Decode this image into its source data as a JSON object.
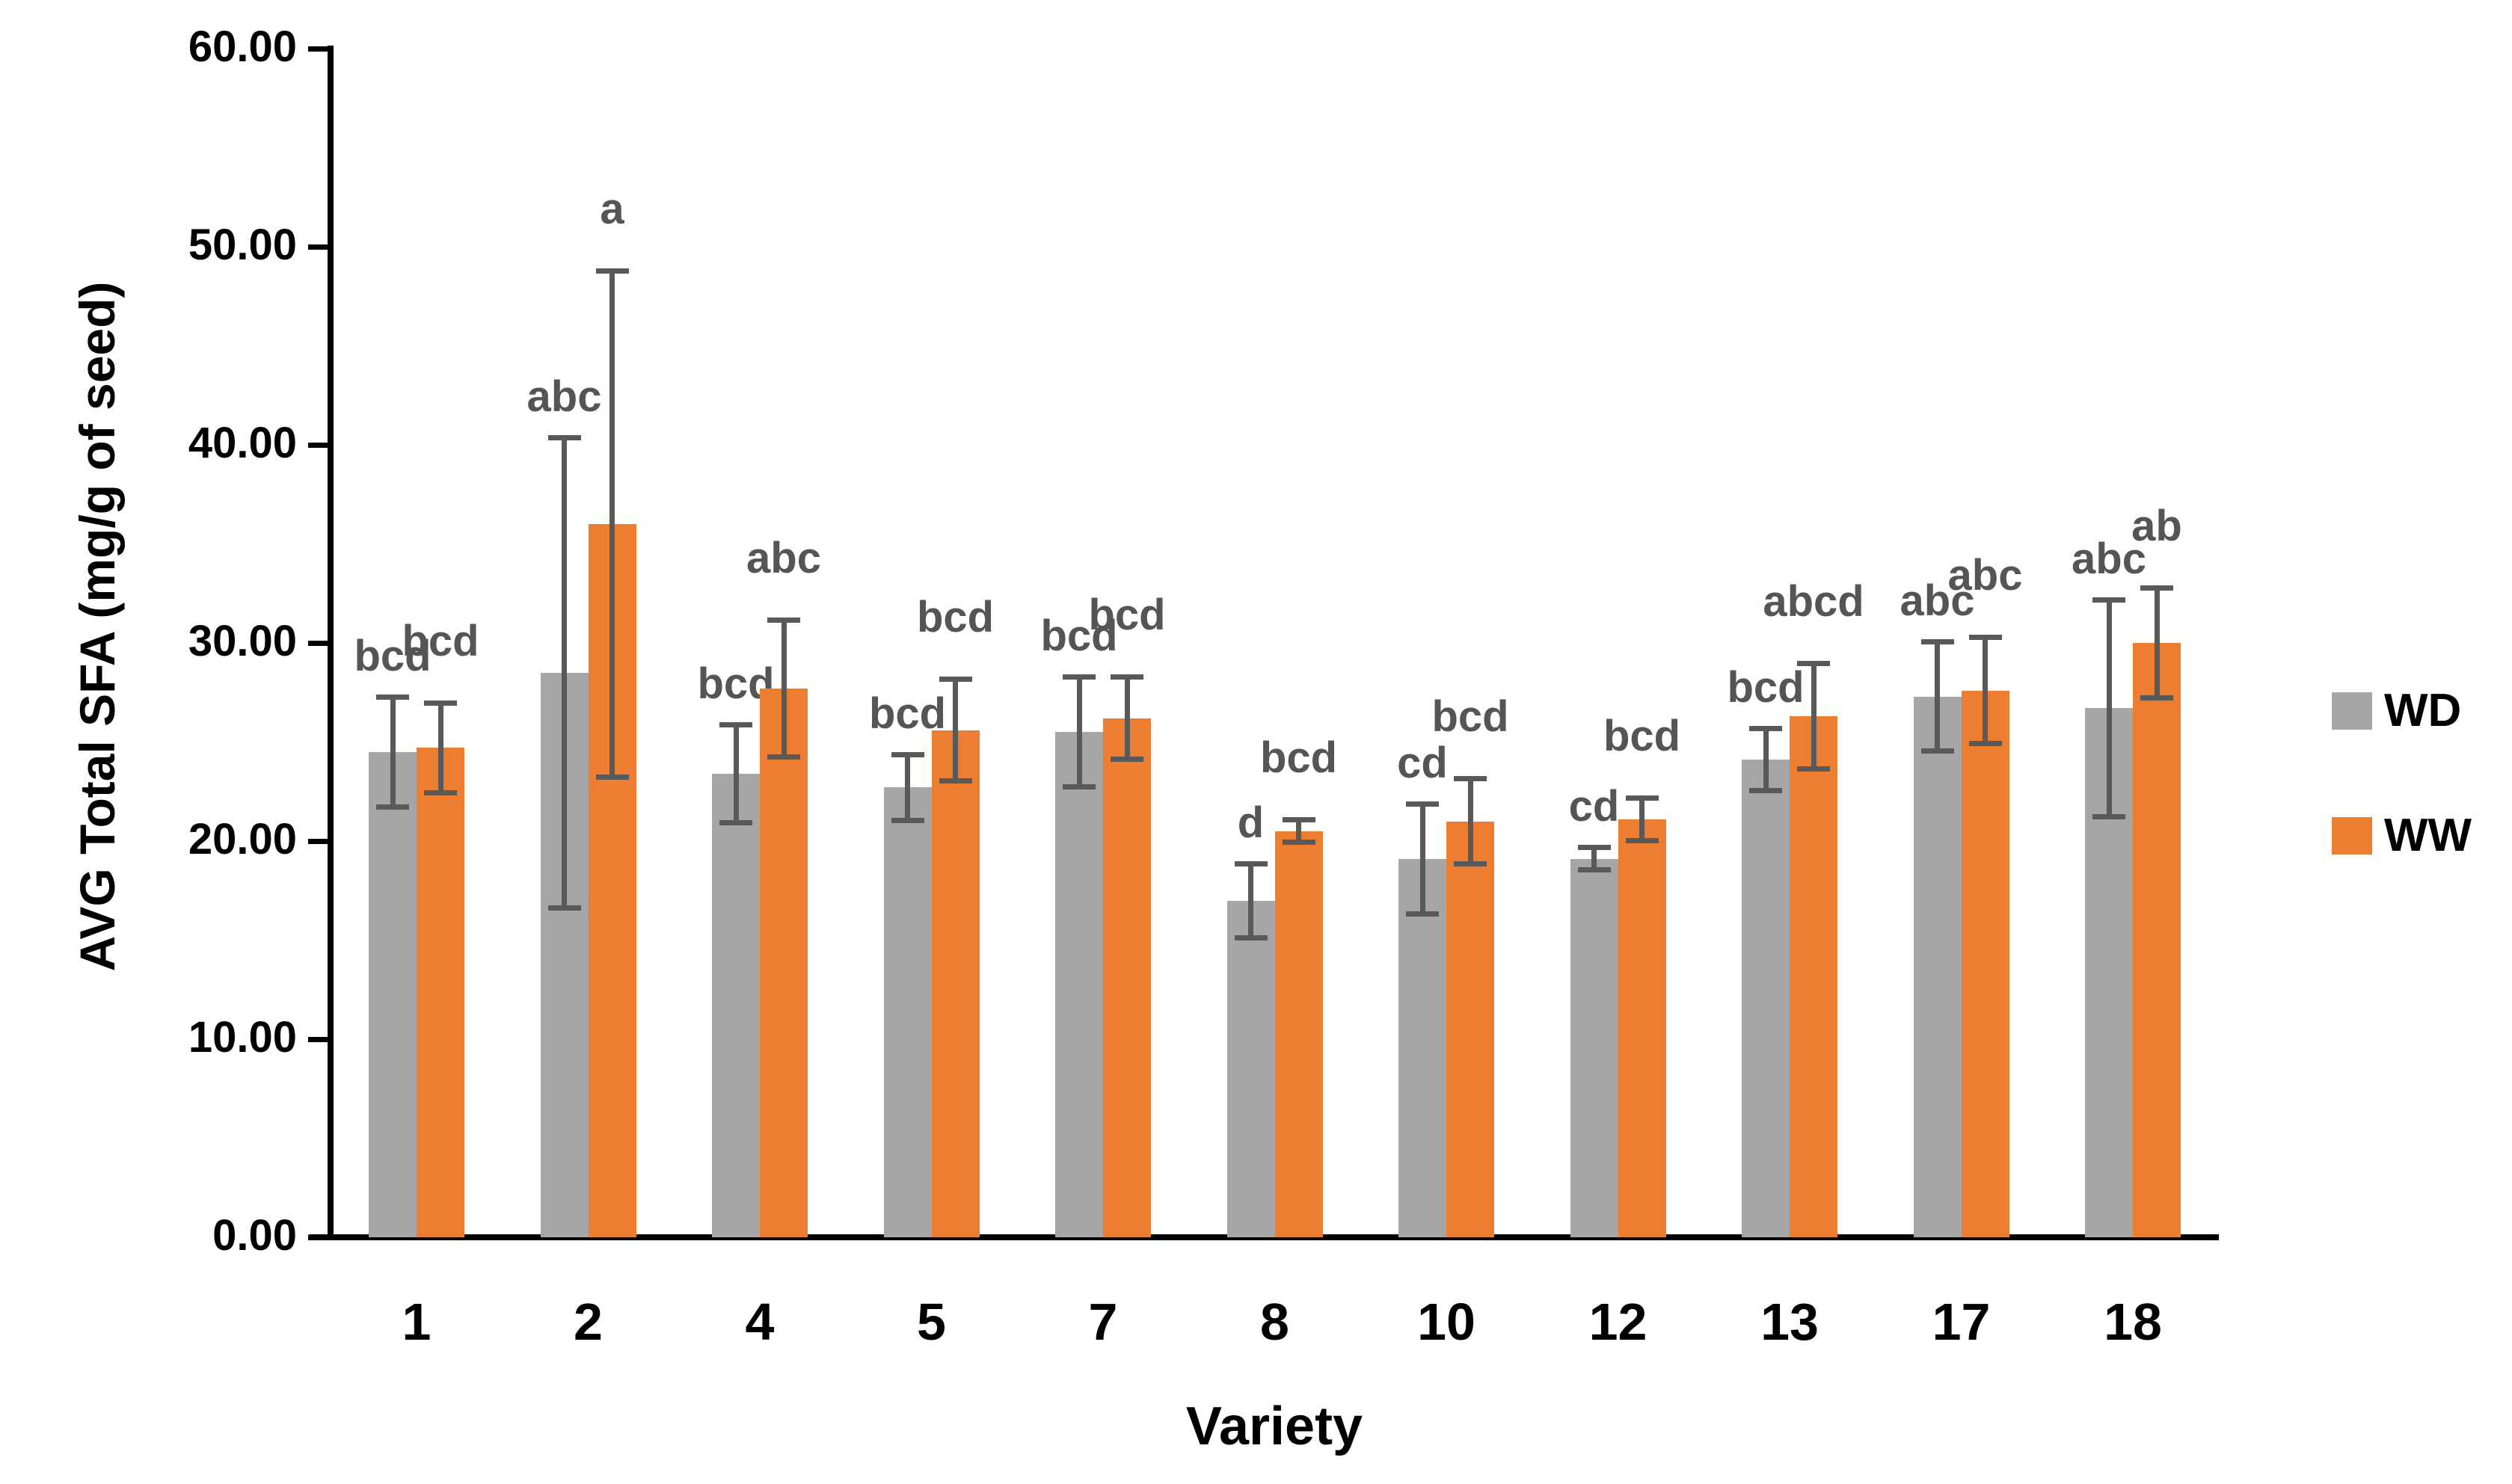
{
  "chart_data": {
    "type": "bar",
    "title": "",
    "xlabel": "Variety",
    "ylabel": "AVG Total SFA (mg/g of seed)",
    "categories": [
      "1",
      "2",
      "4",
      "5",
      "7",
      "8",
      "10",
      "12",
      "13",
      "17",
      "18"
    ],
    "series": [
      {
        "name": "WD",
        "color": "#A6A6A6",
        "values": [
          24.5,
          28.5,
          23.4,
          22.7,
          25.5,
          17.0,
          19.1,
          19.1,
          24.1,
          27.3,
          26.7
        ],
        "errors": [
          2.9,
          12.0,
          2.6,
          1.8,
          2.9,
          2.0,
          2.9,
          0.7,
          1.7,
          2.9,
          5.6
        ],
        "letters": [
          "bcd",
          "abc",
          "bcd",
          "bcd",
          "bcd",
          "d",
          "cd",
          "cd",
          "bcd",
          "abc",
          "abc"
        ]
      },
      {
        "name": "WW",
        "color": "#ED7D31",
        "values": [
          24.7,
          36.0,
          27.7,
          25.6,
          26.2,
          20.5,
          21.0,
          21.1,
          26.3,
          27.6,
          30.0
        ],
        "errors": [
          2.4,
          12.9,
          3.6,
          2.7,
          2.2,
          0.7,
          2.3,
          1.2,
          2.8,
          2.8,
          2.9
        ],
        "letters": [
          "bcd",
          "a",
          "abc",
          "bcd",
          "bcd",
          "bcd",
          "bcd",
          "bcd",
          "abcd",
          "abc",
          "ab"
        ]
      }
    ],
    "ylim": [
      0,
      60
    ],
    "yticks": [
      "60.00",
      "50.00",
      "40.00",
      "30.00",
      "20.00",
      "10.00",
      "0.00"
    ],
    "grid": false,
    "legend_position": "right",
    "error_bar_color": "#595959",
    "significance_letter_color": "#555555",
    "axis_color": "#000000"
  }
}
